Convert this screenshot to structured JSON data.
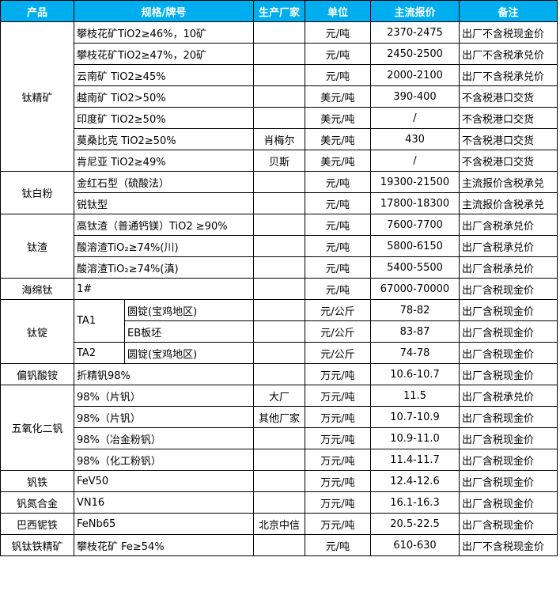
{
  "table": {
    "header": [
      "产品",
      "规格/牌号",
      "生产厂家",
      "单位",
      "主流报价",
      "备注"
    ],
    "groups": [
      {
        "product": "钛精矿",
        "rows": [
          {
            "spec": "攀枝花矿TiO2≥46%，10矿",
            "unit": "元/吨",
            "price": "2370-2475",
            "note": "出厂不含税现金价"
          },
          {
            "spec": "攀枝花矿TiO2≥47%，20矿",
            "unit": "元/吨",
            "price": "2450-2500",
            "note": "出厂不含税承兑价"
          },
          {
            "spec": "云南矿 TiO2≥45%",
            "unit": "元/吨",
            "price": "2000-2100",
            "note": "出厂不含税承兑价"
          },
          {
            "spec": "越南矿 TiO2>50%",
            "unit": "美元/吨",
            "price": "390-400",
            "note": "不含税港口交货"
          },
          {
            "spec": "印度矿 TiO2≥50%",
            "unit": "美元/吨",
            "price": "/",
            "note": "不含税港口交货"
          },
          {
            "spec": "莫桑比克 TiO2≥50%",
            "maker": "肖梅尔",
            "unit": "美元/吨",
            "price": "430",
            "note": "不含税港口交货"
          },
          {
            "spec": "肯尼亚 TiO2≥49%",
            "maker": "贝斯",
            "unit": "美元/吨",
            "price": "/",
            "note": "不含税港口交货"
          }
        ]
      },
      {
        "product": "钛白粉",
        "rows": [
          {
            "spec": "金红石型（硫酸法）",
            "unit": "元/吨",
            "price": "19300-21500",
            "note": "主流报价含税承兑"
          },
          {
            "spec": "锐钛型",
            "unit": "元/吨",
            "price": "17800-18300",
            "note": "主流报价含税承兑"
          }
        ]
      },
      {
        "product": "钛渣",
        "rows": [
          {
            "spec": "高钛渣（普通钙镁）TiO2 ≥90%",
            "unit": "元/吨",
            "price": "7600-7700",
            "note": "出厂含税承兑价"
          },
          {
            "spec": "酸溶渣TiO₂≥74%(川)",
            "unit": "元/吨",
            "price": "5800-6150",
            "note": "出厂含税承兑价"
          },
          {
            "spec": "酸溶渣TiO₂≥74%(滇)",
            "unit": "元/吨",
            "price": "5400-5500",
            "note": "出厂含税承兑价"
          }
        ]
      },
      {
        "product": "海绵钛",
        "rows": [
          {
            "spec": "1#",
            "unit": "元/吨",
            "price": "67000-70000",
            "note": "出厂含税现金价"
          }
        ]
      },
      {
        "product": "钛锭",
        "rows": [
          {
            "grade": "TA1",
            "spec": "圆锭(宝鸡地区)",
            "unit": "元/公斤",
            "price": "78-82",
            "note": "出厂含税现金价"
          },
          {
            "spec": "EB板坯",
            "unit": "元/公斤",
            "price": "83-87",
            "note": "出厂含税现金价"
          },
          {
            "grade": "TA2",
            "spec": "圆锭(宝鸡地区)",
            "unit": "元/公斤",
            "price": "74-78",
            "note": "出厂含税现金价"
          }
        ]
      },
      {
        "product": "偏钒酸铵",
        "rows": [
          {
            "spec": "折精钒98%",
            "unit": "万元/吨",
            "price": "10.6-10.7",
            "note": "出厂含税现金价"
          }
        ]
      },
      {
        "product": "五氧化二钒",
        "rows": [
          {
            "spec": "98%（片钒）",
            "maker": "大厂",
            "unit": "万元/吨",
            "price": "11.5",
            "note": "出厂含税承兑价"
          },
          {
            "spec": "98%（片钒）",
            "maker": "其他厂家",
            "unit": "万元/吨",
            "price": "10.7-10.9",
            "note": "出厂含税现金价"
          },
          {
            "spec": "98%（冶金粉钒）",
            "unit": "万元/吨",
            "price": "10.9-11.0",
            "note": "出厂含税现金价"
          },
          {
            "spec": "98%（化工粉钒）",
            "unit": "万元/吨",
            "price": "11.4-11.7",
            "note": "出厂含税现金价"
          }
        ]
      },
      {
        "product": "钒铁",
        "rows": [
          {
            "spec": "FeV50",
            "unit": "万元/吨",
            "price": "12.4-12.6",
            "note": "出厂含税现金价"
          }
        ]
      },
      {
        "product": "钒氮合金",
        "rows": [
          {
            "spec": "VN16",
            "unit": "万元/吨",
            "price": "16.1-16.3",
            "note": "出厂含税现金价"
          }
        ]
      },
      {
        "product": "巴西铌铁",
        "rows": [
          {
            "spec": "FeNb65",
            "maker": "北京中信",
            "unit": "万元/吨",
            "price": "20.5-22.5",
            "note": "出厂含税现金价"
          }
        ]
      },
      {
        "product": "钒钛铁精矿",
        "rows": [
          {
            "spec": "攀枝花矿 Fe≥54%",
            "unit": "元/吨",
            "price": "610-630",
            "note": "出厂不含税现金价"
          }
        ]
      }
    ]
  }
}
